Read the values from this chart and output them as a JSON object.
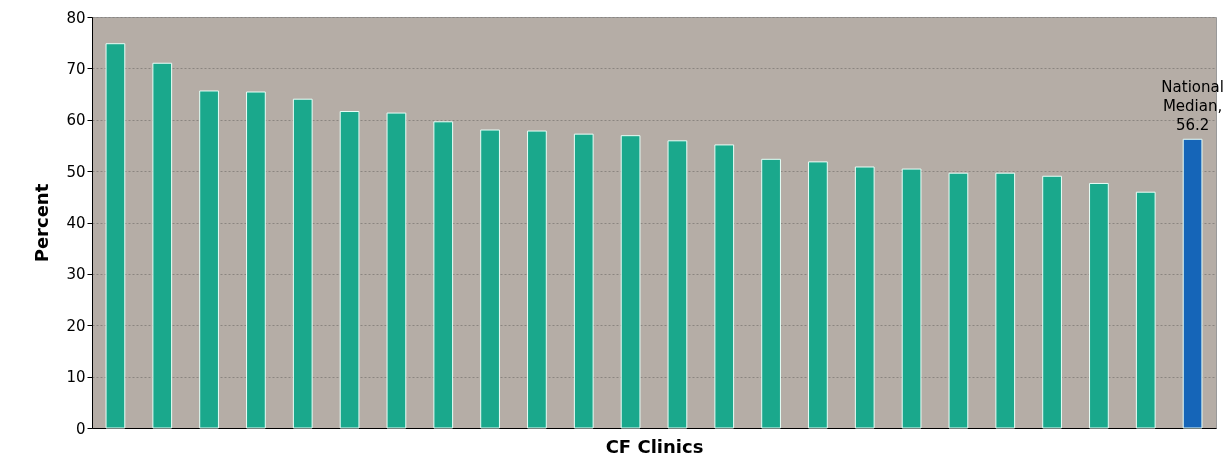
{
  "chart_data": {
    "type": "bar",
    "xlabel": "CF Clinics",
    "ylabel": "Percent",
    "categories": [
      null,
      null,
      null,
      null,
      null,
      null,
      null,
      null,
      null,
      null,
      null,
      null,
      null,
      null,
      null,
      null,
      null,
      null,
      null,
      null,
      null,
      null,
      null,
      null
    ],
    "values": [
      74.8,
      71.0,
      65.6,
      65.4,
      64.0,
      61.6,
      61.3,
      59.6,
      58.0,
      57.8,
      57.2,
      56.9,
      55.9,
      55.1,
      52.3,
      51.8,
      50.8,
      50.4,
      49.6,
      49.6,
      49.0,
      47.6,
      45.9,
      56.2
    ],
    "colors": [
      "#1aa88c",
      "#1aa88c",
      "#1aa88c",
      "#1aa88c",
      "#1aa88c",
      "#1aa88c",
      "#1aa88c",
      "#1aa88c",
      "#1aa88c",
      "#1aa88c",
      "#1aa88c",
      "#1aa88c",
      "#1aa88c",
      "#1aa88c",
      "#1aa88c",
      "#1aa88c",
      "#1aa88c",
      "#1aa88c",
      "#1aa88c",
      "#1aa88c",
      "#1aa88c",
      "#1aa88c",
      "#1aa88c",
      "#1565b8"
    ],
    "value_labels": [
      null,
      null,
      null,
      null,
      null,
      null,
      null,
      null,
      null,
      null,
      null,
      null,
      null,
      null,
      null,
      null,
      null,
      null,
      null,
      null,
      null,
      null,
      null,
      "National\nMedian,\n56.2"
    ],
    "ylim": [
      0,
      80
    ],
    "yticks": [
      0,
      10,
      20,
      30,
      40,
      50,
      60,
      70,
      80
    ],
    "grid": "y"
  }
}
